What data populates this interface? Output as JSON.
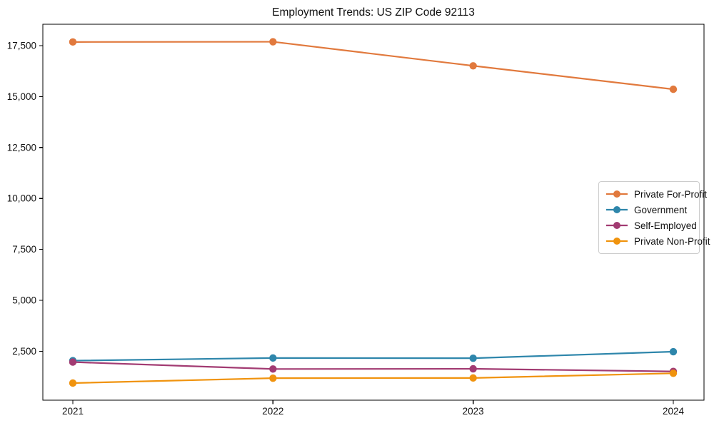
{
  "title": "Employment Trends: US ZIP Code 92113",
  "chart_data": {
    "type": "line",
    "title": "Employment Trends: US ZIP Code 92113",
    "xlabel": "",
    "ylabel": "",
    "x": [
      2021,
      2022,
      2023,
      2024
    ],
    "xtick_labels": [
      "2021",
      "2022",
      "2023",
      "2024"
    ],
    "yticks": [
      2500,
      5000,
      7500,
      10000,
      12500,
      15000,
      17500
    ],
    "ytick_labels": [
      "2,500",
      "5,000",
      "7,500",
      "10,000",
      "12,500",
      "15,000",
      "17,500"
    ],
    "ylim": [
      100,
      18550
    ],
    "grid": false,
    "legend_position": "center right",
    "marker": "circle",
    "series": [
      {
        "name": "Private For-Profit",
        "color": "#E1793D",
        "values": [
          17680,
          17690,
          16510,
          15360
        ]
      },
      {
        "name": "Government",
        "color": "#2E86AB",
        "values": [
          2040,
          2170,
          2160,
          2480
        ]
      },
      {
        "name": "Self-Employed",
        "color": "#A23B72",
        "values": [
          1970,
          1630,
          1640,
          1510
        ]
      },
      {
        "name": "Private Non-Profit",
        "color": "#F0930E",
        "values": [
          940,
          1180,
          1190,
          1420
        ]
      }
    ]
  }
}
